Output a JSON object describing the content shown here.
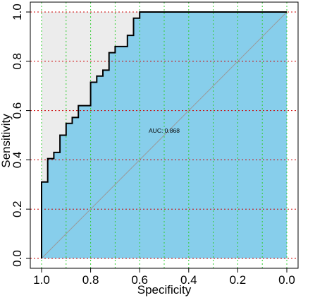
{
  "chart_data": {
    "type": "line",
    "xlabel": "Specificity",
    "ylabel": "Sensitivity",
    "x_reversed": true,
    "xlim": [
      1.0,
      0.0
    ],
    "ylim": [
      0.0,
      1.0
    ],
    "x_ticks": [
      {
        "value": 1.0,
        "label": "1.0"
      },
      {
        "value": 0.8,
        "label": "0.8"
      },
      {
        "value": 0.6,
        "label": "0.6"
      },
      {
        "value": 0.4,
        "label": "0.4"
      },
      {
        "value": 0.2,
        "label": "0.2"
      },
      {
        "value": 0.0,
        "label": "0.0"
      }
    ],
    "y_ticks": [
      {
        "value": 0.0,
        "label": "0.0"
      },
      {
        "value": 0.2,
        "label": "0.2"
      },
      {
        "value": 0.4,
        "label": "0.4"
      },
      {
        "value": 0.6,
        "label": "0.6"
      },
      {
        "value": 0.8,
        "label": "0.8"
      },
      {
        "value": 1.0,
        "label": "1.0"
      }
    ],
    "x_grid": [
      1.0,
      0.9,
      0.8,
      0.7,
      0.6,
      0.5,
      0.4,
      0.3,
      0.2,
      0.1,
      0.0
    ],
    "y_grid": [
      0.0,
      0.2,
      0.4,
      0.6,
      0.8,
      1.0
    ],
    "grid": true,
    "grid_colors": {
      "x": "#32cd32",
      "y": "#cd0000"
    },
    "auc_label": "AUC: 0.868",
    "auc_label_position": {
      "specificity": 0.5,
      "sensitivity": 0.51
    },
    "colors": {
      "curve": "#000000",
      "auc_fill": "#87ceeb",
      "background_fill": "#ececec",
      "diagonal": "#9a9a9a"
    },
    "series": [
      {
        "specificity": [
          1.0,
          1.0,
          0.975,
          0.975,
          0.95,
          0.95,
          0.925,
          0.925,
          0.9,
          0.9,
          0.875,
          0.875,
          0.85,
          0.85,
          0.8,
          0.8,
          0.775,
          0.775,
          0.75,
          0.75,
          0.725,
          0.725,
          0.7,
          0.7,
          0.65,
          0.65,
          0.625,
          0.625,
          0.6,
          0.6,
          0.0
        ],
        "sensitivity": [
          0.0,
          0.31,
          0.31,
          0.405,
          0.405,
          0.43,
          0.43,
          0.5,
          0.5,
          0.548,
          0.548,
          0.572,
          0.572,
          0.62,
          0.62,
          0.715,
          0.715,
          0.74,
          0.74,
          0.764,
          0.764,
          0.835,
          0.835,
          0.86,
          0.86,
          0.905,
          0.905,
          0.975,
          0.975,
          1.0,
          1.0
        ]
      }
    ]
  }
}
